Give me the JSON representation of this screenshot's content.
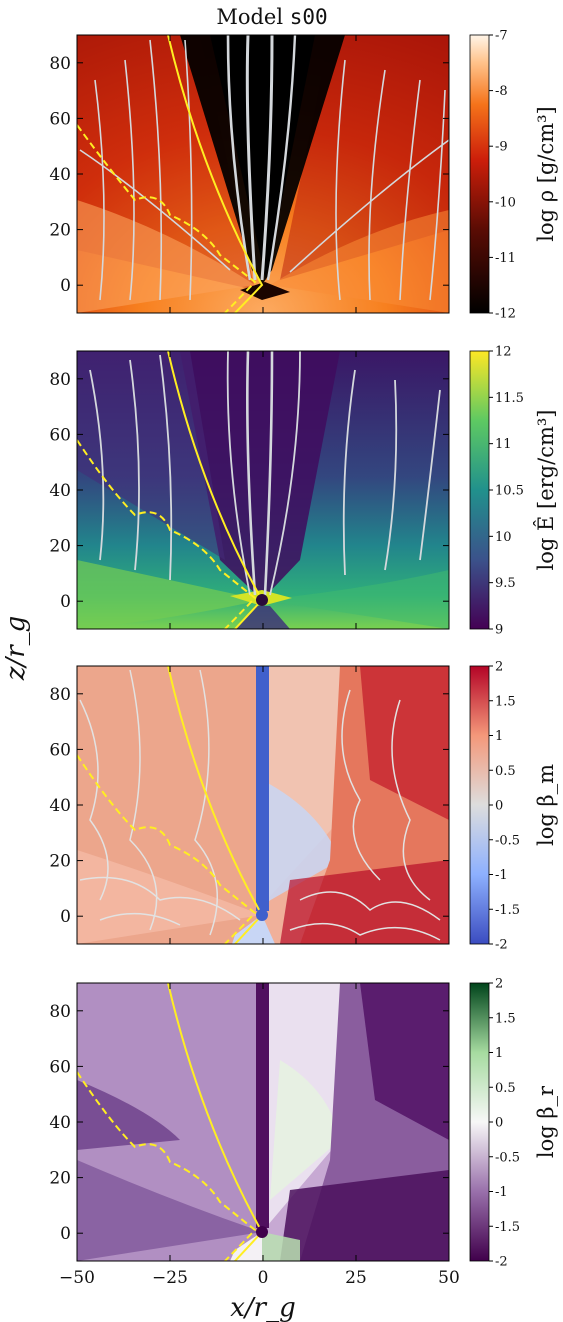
{
  "figure": {
    "title_prefix": "Model",
    "title_model": "s00",
    "xlabel": "x/r_g",
    "ylabel": "z/r_g",
    "xlim": [
      -50,
      50
    ],
    "ylim": [
      -10,
      90
    ],
    "xticks": [
      -50,
      -25,
      0,
      25,
      50
    ],
    "xtick_labels": [
      "−50",
      "−25",
      "0",
      "25",
      "50"
    ],
    "yticks": [
      0,
      20,
      40,
      60,
      80
    ],
    "ytick_labels": [
      "0",
      "20",
      "40",
      "60",
      "80"
    ]
  },
  "chart_data": [
    {
      "type": "heatmap",
      "quantity": "log ρ [g/cm³]",
      "colorbar_label": "log ρ [g/cm³]",
      "colormap": "gist_heat",
      "colorbar_range": [
        -12,
        -7
      ],
      "colorbar_ticks": [
        -12,
        -11,
        -10,
        -9,
        -8,
        -7
      ],
      "colorbar_tick_labels": [
        "-12",
        "-11",
        "-10",
        "-9",
        "-8",
        "-7"
      ],
      "overlays": "white streamlines with arrows; solid yellow line; dashed yellow line",
      "colors": {
        "low": "#000000",
        "mid": "#cc1e0a",
        "high": "#fff5e8",
        "streamline": "#d4d8dc",
        "contour": "#ffee22"
      }
    },
    {
      "type": "heatmap",
      "quantity": "log Ê [erg/cm³]",
      "colorbar_label": "log Ê [erg/cm³]",
      "colormap": "viridis",
      "colorbar_range": [
        9,
        12
      ],
      "colorbar_ticks": [
        9,
        9.5,
        10,
        10.5,
        11,
        11.5,
        12
      ],
      "colorbar_tick_labels": [
        "9",
        "9.5",
        "10",
        "10.5",
        "11",
        "11.5",
        "12"
      ],
      "overlays": "white streamlines with arrows; solid yellow line; dashed yellow line",
      "colors": {
        "low": "#440154",
        "mid": "#21918c",
        "high": "#fde725",
        "streamline": "#d4d8dc",
        "contour": "#ffee22"
      }
    },
    {
      "type": "heatmap",
      "quantity": "log β_m",
      "colorbar_label": "log β_m",
      "colormap": "coolwarm",
      "colorbar_range": [
        -2,
        2
      ],
      "colorbar_ticks": [
        -2,
        -1.5,
        -1,
        -0.5,
        0,
        0.5,
        1,
        1.5,
        2
      ],
      "colorbar_tick_labels": [
        "-2",
        "-1.5",
        "-1",
        "-0.5",
        "0",
        "0.5",
        "1",
        "1.5",
        "2"
      ],
      "overlays": "light grey contours; solid yellow line; dashed yellow line",
      "colors": {
        "low": "#3b4cc0",
        "mid": "#dddddd",
        "high": "#b40426",
        "streamline": "#d8d8d8",
        "contour": "#ffee22"
      }
    },
    {
      "type": "heatmap",
      "quantity": "log β_r",
      "colorbar_label": "log β_r",
      "colormap": "PRGn",
      "colorbar_range": [
        -2,
        2
      ],
      "colorbar_ticks": [
        -2,
        -1.5,
        -1,
        -0.5,
        0,
        0.5,
        1,
        1.5,
        2
      ],
      "colorbar_tick_labels": [
        "-2",
        "-1.5",
        "-1",
        "-0.5",
        "0",
        "0.5",
        "1",
        "1.5",
        "2"
      ],
      "overlays": "solid yellow line; dashed yellow line",
      "colors": {
        "low": "#40004b",
        "mid": "#f7f7f7",
        "high": "#00441b",
        "contour": "#ffee22"
      }
    }
  ]
}
